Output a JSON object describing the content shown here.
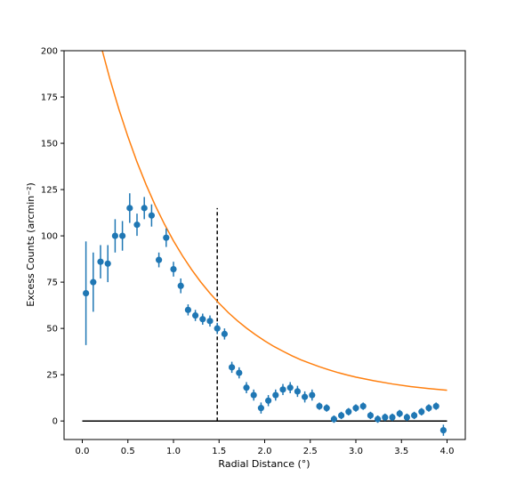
{
  "chart_data": {
    "type": "scatter",
    "xlabel": "Radial Distance (°)",
    "ylabel": "Excess Counts (arcmin⁻²)",
    "xlim": [
      -0.2,
      4.2
    ],
    "ylim": [
      -10,
      200
    ],
    "xticks": [
      "0.0",
      "0.5",
      "1.0",
      "1.5",
      "2.0",
      "2.5",
      "3.0",
      "3.5",
      "4.0"
    ],
    "yticks": [
      "0",
      "25",
      "50",
      "75",
      "100",
      "125",
      "150",
      "175",
      "200"
    ],
    "grid": false,
    "colors": {
      "points": "#1f77b4",
      "fit": "#ff7f0e",
      "baseline": "#000000",
      "marker_line": "#000000"
    },
    "series": [
      {
        "x": [
          0.04,
          0.12,
          0.2,
          0.28,
          0.36,
          0.44,
          0.52,
          0.6,
          0.68,
          0.76,
          0.84,
          0.92,
          1.0,
          1.08,
          1.16,
          1.24,
          1.32,
          1.4,
          1.48,
          1.56,
          1.64,
          1.72,
          1.8,
          1.88,
          1.96,
          2.04,
          2.12,
          2.2,
          2.28,
          2.36,
          2.44,
          2.52,
          2.6,
          2.68,
          2.76,
          2.84,
          2.92,
          3.0,
          3.08,
          3.16,
          3.24,
          3.32,
          3.4,
          3.48,
          3.56,
          3.64,
          3.72,
          3.8,
          3.88,
          3.96
        ],
        "y": [
          69,
          75,
          86,
          85,
          100,
          100,
          115,
          106,
          115,
          111,
          87,
          99,
          82,
          73,
          60,
          57,
          55,
          54,
          50,
          47,
          29,
          26,
          18,
          14,
          7,
          11,
          14,
          17,
          18,
          16,
          13,
          14,
          8,
          7,
          1,
          3,
          5,
          7,
          8,
          3,
          1,
          2,
          2,
          4,
          2,
          3,
          5,
          7,
          8,
          -5
        ],
        "yerr": [
          28,
          16,
          9,
          10,
          9,
          8,
          8,
          6,
          6,
          6,
          4,
          5,
          4,
          4,
          3,
          3,
          3,
          3,
          3,
          3,
          3,
          3,
          3,
          3,
          3,
          3,
          3,
          3,
          3,
          3,
          3,
          3,
          2,
          2,
          2,
          2,
          2,
          2,
          2,
          2,
          2,
          2,
          2,
          2,
          2,
          2,
          2,
          2,
          2,
          3
        ]
      },
      {
        "type": "line",
        "x": [
          0.22,
          0.3,
          0.4,
          0.5,
          0.6,
          0.7,
          0.8,
          0.9,
          1.0,
          1.1,
          1.2,
          1.3,
          1.4,
          1.5,
          1.6,
          1.7,
          1.8,
          1.9,
          2.0,
          2.1,
          2.2,
          2.3,
          2.4,
          2.5,
          2.6,
          2.7,
          2.8,
          2.9,
          3.0,
          3.2,
          3.4,
          3.6,
          3.8,
          4.0
        ],
        "y": [
          199.9,
          185.2,
          168.6,
          153.6,
          139.9,
          127.6,
          116.4,
          106.4,
          97.3,
          89.1,
          81.7,
          75.0,
          69.0,
          63.6,
          58.6,
          54.2,
          50.2,
          46.6,
          43.3,
          40.3,
          37.7,
          35.2,
          33.0,
          31.1,
          29.3,
          27.7,
          26.2,
          24.9,
          23.7,
          21.7,
          20.0,
          18.6,
          17.5,
          16.6
        ]
      }
    ],
    "baseline_y": 0,
    "vertical_line": {
      "x": 1.48,
      "y_from": 0,
      "y_to": 115
    }
  }
}
